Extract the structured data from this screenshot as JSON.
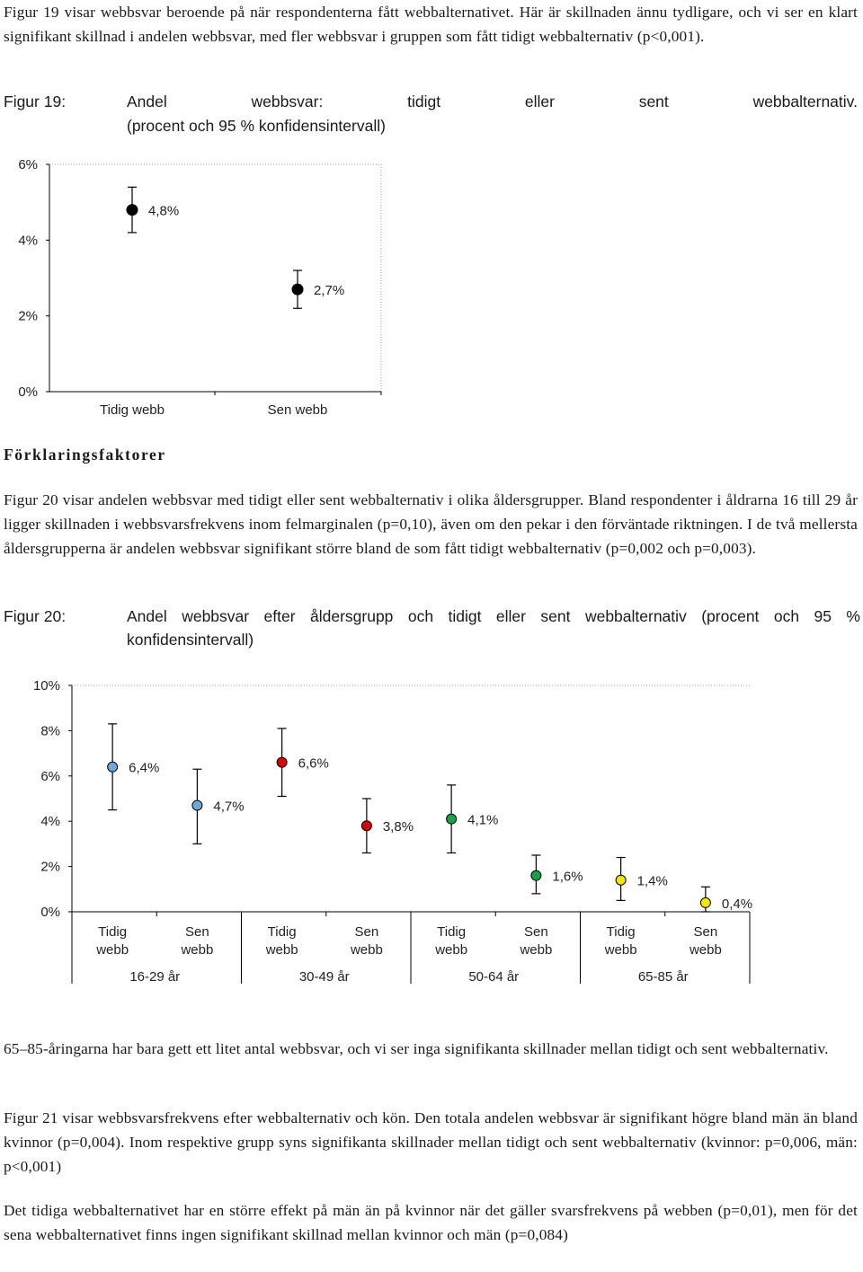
{
  "paragraphs": {
    "p1": "Figur 19 visar webbsvar beroende på när respondenterna fått webbalternativet. Här är skillnaden ännu tydligare, och vi ser en klart signifikant skillnad i andelen webbsvar, med fler webbsvar i gruppen som fått tidigt webbalternativ (p<0,001).",
    "p2": "Figur 20 visar andelen webbsvar med tidigt eller sent webbalternativ i olika åldersgrupper. Bland respondenter i åldrarna 16 till 29 år ligger skillnaden i webbsvarsfrekvens inom felmarginalen (p=0,10), även om den pekar i den förväntade riktningen. I de två mellersta åldersgrupperna är andelen webbsvar signifikant större bland de som fått tidigt webbalternativ (p=0,002 och p=0,003).",
    "p3": "65–85-åringarna har bara gett ett litet antal webbsvar, och vi ser inga signifikanta skillnader mellan tidigt och sent webbalternativ.",
    "p4": "Figur 21 visar webbsvarsfrekvens efter webbalternativ och kön. Den totala andelen webbsvar är signifikant högre bland män än bland kvinnor (p=0,004). Inom respektive grupp syns signifikanta skillnader mellan tidigt och sent webbalternativ (kvinnor: p=0,006, män: p<0,001)",
    "p5": "Det tidiga webbalternativet har en större effekt på män än på kvinnor när det gäller svarsfrekvens på webben (p=0,01), men för det sena webbalternativet finns ingen signifikant skillnad mellan kvinnor och män (p=0,084)"
  },
  "section_heading": "Förklaringsfaktorer",
  "figure19": {
    "label": "Figur 19:",
    "title_words": [
      "Andel",
      "webbsvar:",
      "tidigt",
      "eller",
      "sent",
      "webbalternativ."
    ],
    "title_line2": "(procent och 95 % konfidensintervall)"
  },
  "figure20": {
    "label": "Figur 20:",
    "title_line1": "Andel webbsvar efter åldersgrupp och tidigt eller sent webbalternativ (procent och 95 %",
    "title_line2": "konfidensintervall)"
  },
  "chart_data": [
    {
      "type": "scatter",
      "ylim": [
        0,
        6
      ],
      "y_ticks": [
        "0%",
        "2%",
        "4%",
        "6%"
      ],
      "categories": [
        "Tidig webb",
        "Sen webb"
      ],
      "values": [
        4.8,
        2.7
      ],
      "ci": [
        [
          4.2,
          5.4
        ],
        [
          2.2,
          3.2
        ]
      ],
      "labels": [
        "4,8%",
        "2,7%"
      ],
      "colors": [
        "#000000",
        "#000000"
      ]
    },
    {
      "type": "scatter",
      "ylim": [
        0,
        10
      ],
      "y_ticks": [
        "0%",
        "2%",
        "4%",
        "6%",
        "8%",
        "10%"
      ],
      "groups": [
        "16-29 år",
        "30-49 år",
        "50-64 år",
        "65-85 år"
      ],
      "categories": [
        "Tidig webb",
        "Sen webb"
      ],
      "points": [
        {
          "group": 0,
          "cat": 0,
          "value": 6.4,
          "lo": 4.5,
          "hi": 8.3,
          "label": "6,4%",
          "color": "#6fa8dc"
        },
        {
          "group": 0,
          "cat": 1,
          "value": 4.7,
          "lo": 3.0,
          "hi": 6.3,
          "label": "4,7%",
          "color": "#6fa8dc"
        },
        {
          "group": 1,
          "cat": 0,
          "value": 6.6,
          "lo": 5.1,
          "hi": 8.1,
          "label": "6,6%",
          "color": "#e00000"
        },
        {
          "group": 1,
          "cat": 1,
          "value": 3.8,
          "lo": 2.6,
          "hi": 5.0,
          "label": "3,8%",
          "color": "#e00000"
        },
        {
          "group": 2,
          "cat": 0,
          "value": 4.1,
          "lo": 2.6,
          "hi": 5.6,
          "label": "4,1%",
          "color": "#16a34a"
        },
        {
          "group": 2,
          "cat": 1,
          "value": 1.6,
          "lo": 0.8,
          "hi": 2.5,
          "label": "1,6%",
          "color": "#16a34a"
        },
        {
          "group": 3,
          "cat": 0,
          "value": 1.4,
          "lo": 0.5,
          "hi": 2.4,
          "label": "1,4%",
          "color": "#f2e600"
        },
        {
          "group": 3,
          "cat": 1,
          "value": 0.4,
          "lo": 0.0,
          "hi": 1.1,
          "label": "0,4%",
          "color": "#f2e600"
        }
      ]
    }
  ],
  "chart20_xlabels": [
    {
      "l1": "Tidig",
      "l2": "webb"
    },
    {
      "l1": "Sen",
      "l2": "webb"
    }
  ]
}
